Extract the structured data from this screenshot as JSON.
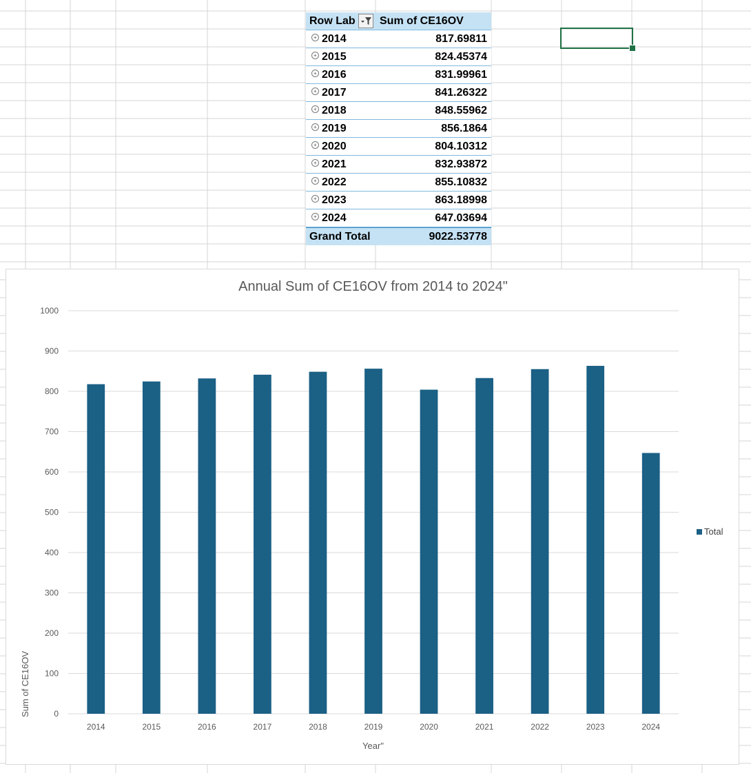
{
  "pivot": {
    "header_row_label": "Row Lab",
    "header_value_label": "Sum of CE16OV",
    "rows": [
      {
        "year": "2014",
        "value": "817.69811"
      },
      {
        "year": "2015",
        "value": "824.45374"
      },
      {
        "year": "2016",
        "value": "831.99961"
      },
      {
        "year": "2017",
        "value": "841.26322"
      },
      {
        "year": "2018",
        "value": "848.55962"
      },
      {
        "year": "2019",
        "value": "856.1864"
      },
      {
        "year": "2020",
        "value": "804.10312"
      },
      {
        "year": "2021",
        "value": "832.93872"
      },
      {
        "year": "2022",
        "value": "855.10832"
      },
      {
        "year": "2023",
        "value": "863.18998"
      },
      {
        "year": "2024",
        "value": "647.03694"
      }
    ],
    "grand_total_label": "Grand Total",
    "grand_total_value": "9022.53778",
    "header_color": "#c5e2f4",
    "expand_icon": "plus-circle-icon",
    "filter_icon": "filter-dropdown-icon"
  },
  "chart_data": {
    "type": "bar",
    "title": "Annual Sum of CE16OV from 2014 to 2024\"",
    "xlabel": "Year\"",
    "ylabel": "Sum of CE16OV",
    "categories": [
      "2014",
      "2015",
      "2016",
      "2017",
      "2018",
      "2019",
      "2020",
      "2021",
      "2022",
      "2023",
      "2024"
    ],
    "series": [
      {
        "name": "Total",
        "values": [
          817.69811,
          824.45374,
          831.99961,
          841.26322,
          848.55962,
          856.1864,
          804.10312,
          832.93872,
          855.10832,
          863.18998,
          647.03694
        ]
      }
    ],
    "ylim": [
      0,
      1000
    ],
    "yticks": [
      "0",
      "100",
      "200",
      "300",
      "400",
      "500",
      "600",
      "700",
      "800",
      "900",
      "1000"
    ],
    "grid": true,
    "legend_position": "right",
    "bar_color": "#1b6085"
  }
}
